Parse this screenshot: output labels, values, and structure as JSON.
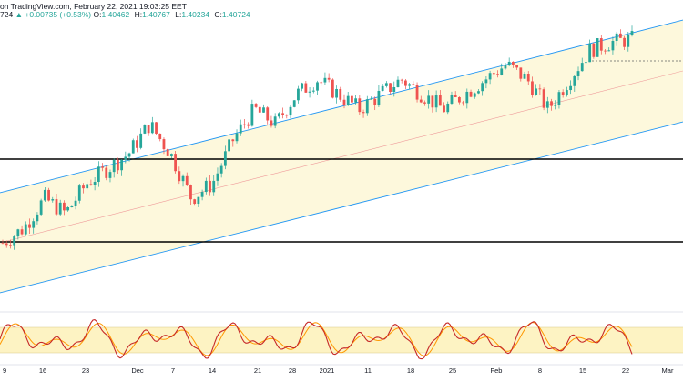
{
  "header": {
    "line1": "on TradingView.com, February 22, 2021 19:03:25 EET",
    "last_fragment": "724",
    "arrow": "▲",
    "change": "+0.00735 (+0.53%)",
    "o_label": "O:",
    "o_value": "1.40462",
    "h_label": "H:",
    "h_value": "1.40767",
    "l_label": "L:",
    "l_value": "1.40234",
    "c_label": "C:",
    "c_value": "1.40724"
  },
  "colors": {
    "up_candle": "#26a69a",
    "down_candle": "#ef5350",
    "channel_fill": "#fdf8dc",
    "channel_line": "#2196f3",
    "mid_line": "#ef9a9a",
    "support_line": "#000000",
    "osc_band": "#fdf3c3",
    "osc_k": "#c62828",
    "osc_d": "#ff9800"
  },
  "chart_data": {
    "type": "candlestick",
    "symbol_last_close": 1.40724,
    "x_tick_labels": [
      "9",
      "16",
      "23",
      "Dec",
      "7",
      "14",
      "21",
      "28",
      "2021",
      "11",
      "18",
      "25",
      "Feb",
      "8",
      "15",
      "22",
      "Mar"
    ],
    "price_series_close_approx": [
      1.27,
      1.28,
      1.3,
      1.29,
      1.31,
      1.32,
      1.33,
      1.35,
      1.33,
      1.3,
      1.31,
      1.34,
      1.36,
      1.35,
      1.37,
      1.38,
      1.37,
      1.36,
      1.37,
      1.38,
      1.37,
      1.36,
      1.37,
      1.38,
      1.39,
      1.38,
      1.36,
      1.38,
      1.4,
      1.405,
      1.407
    ],
    "horizontal_levels": [
      "upper support",
      "lower support"
    ],
    "ascending_channel": true,
    "oscillator": "stochastic",
    "oscillator_band": [
      20,
      80
    ]
  }
}
